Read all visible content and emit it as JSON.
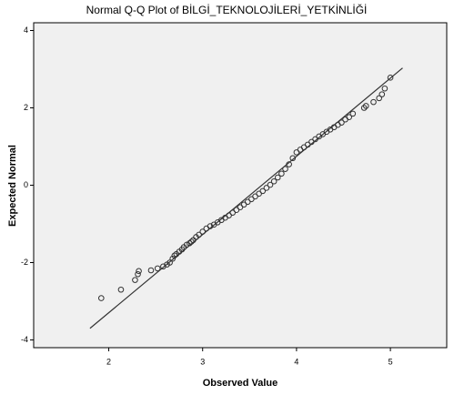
{
  "chart_data": {
    "type": "scatter",
    "title": "Normal Q-Q Plot of BİLGİ_TEKNOLOJİLERİ_YETKİNLİĞİ",
    "x_label": "Observed Value",
    "y_label": "Expected Normal",
    "x": [
      1.92,
      2.13,
      2.28,
      2.31,
      2.32,
      2.45,
      2.52,
      2.58,
      2.62,
      2.65,
      2.68,
      2.7,
      2.72,
      2.75,
      2.78,
      2.8,
      2.83,
      2.86,
      2.88,
      2.9,
      2.93,
      2.96,
      3.0,
      3.04,
      3.08,
      3.12,
      3.16,
      3.2,
      3.24,
      3.28,
      3.32,
      3.36,
      3.4,
      3.44,
      3.48,
      3.52,
      3.56,
      3.6,
      3.64,
      3.68,
      3.72,
      3.76,
      3.8,
      3.84,
      3.88,
      3.92,
      3.96,
      4.0,
      4.04,
      4.08,
      4.12,
      4.16,
      4.2,
      4.24,
      4.28,
      4.32,
      4.36,
      4.4,
      4.44,
      4.48,
      4.52,
      4.56,
      4.6,
      4.72,
      4.74,
      4.82,
      4.88,
      4.91,
      4.94,
      5.0
    ],
    "values": [
      -2.92,
      -2.7,
      -2.45,
      -2.3,
      -2.22,
      -2.2,
      -2.15,
      -2.1,
      -2.05,
      -2.0,
      -1.9,
      -1.82,
      -1.78,
      -1.72,
      -1.66,
      -1.6,
      -1.54,
      -1.5,
      -1.46,
      -1.42,
      -1.34,
      -1.28,
      -1.2,
      -1.12,
      -1.06,
      -1.02,
      -0.96,
      -0.9,
      -0.84,
      -0.78,
      -0.71,
      -0.64,
      -0.57,
      -0.5,
      -0.43,
      -0.36,
      -0.29,
      -0.22,
      -0.15,
      -0.07,
      0.01,
      0.1,
      0.2,
      0.3,
      0.42,
      0.54,
      0.7,
      0.85,
      0.92,
      0.98,
      1.05,
      1.12,
      1.19,
      1.26,
      1.32,
      1.38,
      1.44,
      1.5,
      1.56,
      1.62,
      1.7,
      1.76,
      1.85,
      2.0,
      2.05,
      2.15,
      2.25,
      2.35,
      2.5,
      2.78
    ],
    "reference_line": {
      "x": [
        1.8,
        5.13
      ],
      "y": [
        -3.7,
        3.03
      ]
    },
    "marker_color": "#333333",
    "line_color": "#333333",
    "background": "#f0f0f0",
    "xlim": [
      1.2,
      5.6
    ],
    "xticks": [
      2,
      3,
      4,
      5
    ],
    "ylim": [
      -4.2,
      4.2
    ],
    "yticks": [
      -4,
      -2,
      0,
      2,
      4
    ]
  }
}
